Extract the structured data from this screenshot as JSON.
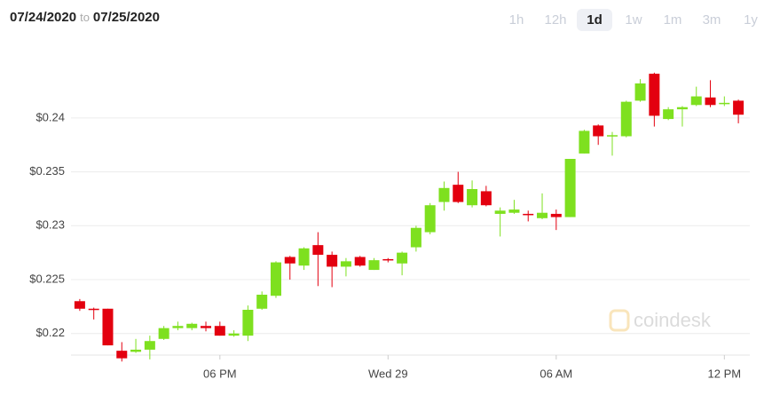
{
  "header": {
    "range_start": "07/24/2020",
    "range_separator": "to",
    "range_end": "07/25/2020",
    "range_buttons": [
      "1h",
      "12h",
      "1d",
      "1w",
      "1m",
      "3m",
      "1y"
    ],
    "selected": "1d"
  },
  "watermark": "coindesk",
  "chart_data": {
    "type": "candlestick",
    "categories": [
      null,
      null,
      null,
      null,
      null,
      null,
      null,
      null,
      null,
      null,
      "06 PM",
      null,
      null,
      null,
      null,
      null,
      null,
      null,
      null,
      null,
      null,
      null,
      "Wed 29",
      null,
      null,
      null,
      null,
      null,
      null,
      null,
      null,
      null,
      null,
      null,
      "06 AM",
      null,
      null,
      null,
      null,
      null,
      null,
      null,
      null,
      null,
      null,
      null,
      "12 PM",
      null
    ],
    "open": [
      0.223,
      0.2223,
      0.2223,
      0.2184,
      0.2183,
      0.2185,
      0.2195,
      0.2205,
      0.2205,
      0.2207,
      0.2207,
      0.2198,
      0.2198,
      0.2223,
      0.2235,
      0.2271,
      0.2263,
      0.2282,
      0.2273,
      0.2262,
      0.2271,
      0.2259,
      0.2269,
      0.2265,
      0.228,
      0.2294,
      0.2322,
      0.2338,
      0.2319,
      0.2332,
      0.2311,
      0.2312,
      0.2311,
      0.2307,
      0.2311,
      0.2308,
      0.2367,
      0.2393,
      0.2383,
      0.2383,
      0.2416,
      0.2441,
      0.2399,
      0.2408,
      0.2412,
      0.2419,
      0.2413,
      0.2416
    ],
    "high": [
      0.2232,
      0.2224,
      0.2223,
      0.2192,
      0.2195,
      0.2198,
      0.2207,
      0.2211,
      0.221,
      0.2211,
      0.2211,
      0.2203,
      0.2226,
      0.2239,
      0.2267,
      0.2272,
      0.228,
      0.2294,
      0.2276,
      0.227,
      0.2272,
      0.227,
      0.227,
      0.2276,
      0.23,
      0.2321,
      0.2341,
      0.235,
      0.2342,
      0.2337,
      0.2317,
      0.2324,
      0.2314,
      0.233,
      0.2315,
      0.2362,
      0.2389,
      0.2394,
      0.2387,
      0.2416,
      0.2436,
      0.2442,
      0.241,
      0.2411,
      0.2429,
      0.2435,
      0.242,
      0.2417
    ],
    "low": [
      0.2221,
      0.2213,
      0.2189,
      0.2174,
      0.2182,
      0.2176,
      0.2194,
      0.2203,
      0.2203,
      0.2202,
      0.2198,
      0.2197,
      0.2193,
      0.2222,
      0.2233,
      0.225,
      0.2259,
      0.2244,
      0.2243,
      0.2253,
      0.2262,
      0.2259,
      0.2266,
      0.2254,
      0.2276,
      0.2292,
      0.2314,
      0.2321,
      0.2317,
      0.2318,
      0.229,
      0.2311,
      0.2304,
      0.2306,
      0.2296,
      0.2308,
      0.2367,
      0.2375,
      0.2365,
      0.2382,
      0.2415,
      0.2392,
      0.2398,
      0.2392,
      0.2411,
      0.241,
      0.2411,
      0.2395
    ],
    "close": [
      0.2223,
      0.2222,
      0.2189,
      0.2177,
      0.2185,
      0.2193,
      0.2205,
      0.2207,
      0.2209,
      0.2205,
      0.2198,
      0.22,
      0.2222,
      0.2236,
      0.2266,
      0.2265,
      0.2279,
      0.2273,
      0.2262,
      0.2267,
      0.2263,
      0.2268,
      0.2268,
      0.2275,
      0.2298,
      0.2319,
      0.2335,
      0.2322,
      0.2334,
      0.2319,
      0.2314,
      0.2315,
      0.231,
      0.2312,
      0.2308,
      0.2362,
      0.2388,
      0.2383,
      0.2384,
      0.2415,
      0.2432,
      0.2402,
      0.2408,
      0.241,
      0.242,
      0.2412,
      0.2414,
      0.2403
    ],
    "up_color": "#7ee01f",
    "down_color": "#e3000f",
    "ylim": [
      0.218,
      0.246
    ],
    "yticks": [
      {
        "value": 0.22,
        "label": "$0.22"
      },
      {
        "value": 0.225,
        "label": "$0.225"
      },
      {
        "value": 0.23,
        "label": "$0.23"
      },
      {
        "value": 0.235,
        "label": "$0.235"
      },
      {
        "value": 0.24,
        "label": "$0.24"
      }
    ],
    "grid": true
  }
}
